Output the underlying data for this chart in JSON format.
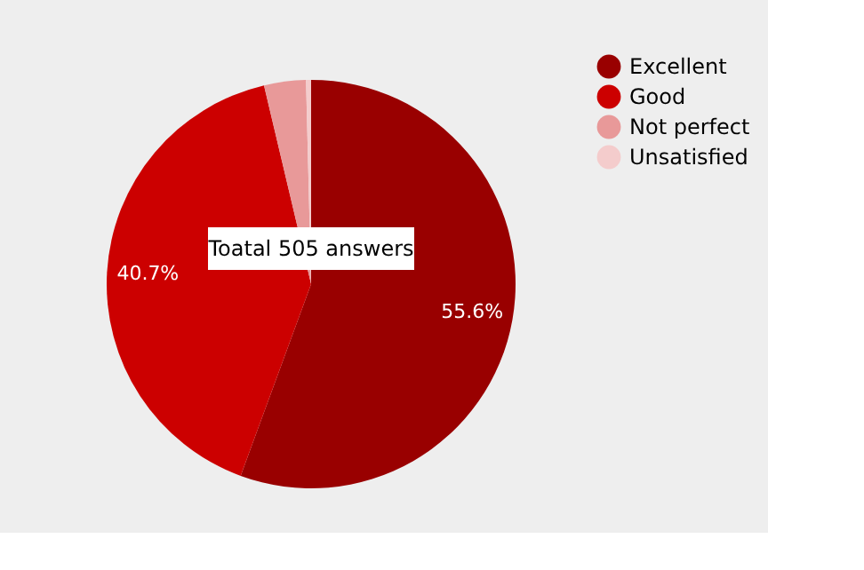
{
  "chart_data": {
    "type": "pie",
    "categories": [
      "Excellent",
      "Good",
      "Not perfect",
      "Unsatisfied"
    ],
    "values": [
      55.6,
      40.7,
      3.3,
      0.4
    ],
    "colors": [
      "#990000",
      "#cc0000",
      "#e89999",
      "#f4cccc"
    ],
    "value_labels": [
      "55.6%",
      "40.7%",
      null,
      null
    ],
    "annotations": [
      "Toatal 505 answers"
    ],
    "legend": "right"
  }
}
